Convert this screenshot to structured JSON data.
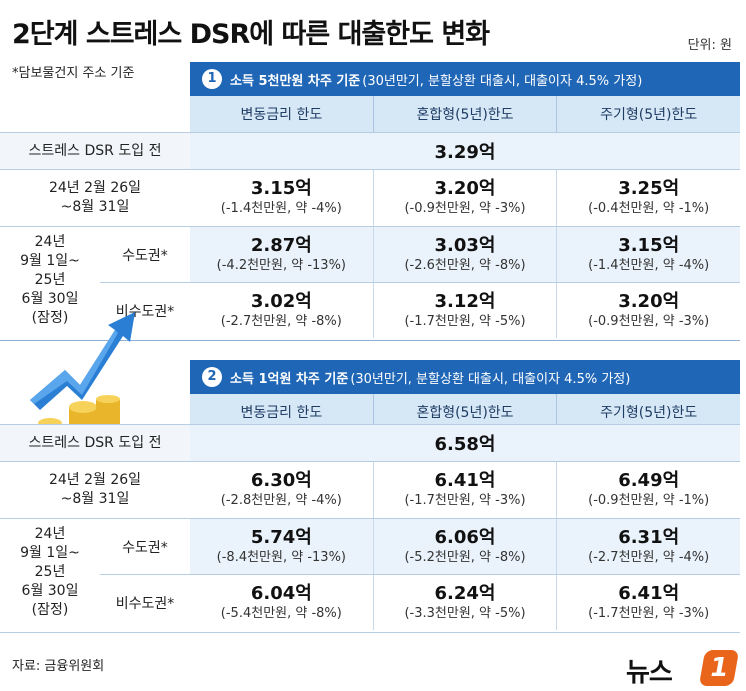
{
  "title": "2단계 스트레스 DSR에 따른 대출한도 변화",
  "unit": "단위: 원",
  "basis_note": "*담보물건지 주소 기준",
  "source": "자료: 금융위원회",
  "logo": {
    "text": "뉴스",
    "badge": "1"
  },
  "columns": [
    "변동금리 한도",
    "혼합형(5년)한도",
    "주기형(5년)한도"
  ],
  "row_labels": {
    "pre": "스트레스 DSR 도입 전",
    "phase1": [
      "24년 2월 26일",
      "~8월 31일"
    ],
    "phase2": [
      "24년",
      "9월 1일~",
      "25년",
      "6월 30일",
      "(잠정)"
    ],
    "capital": "수도권*",
    "non_capital": "비수도권*"
  },
  "sections": [
    {
      "num": "1",
      "title_main": "소득 5천만원 차주 기준",
      "title_sub": "(30년만기, 분할상환 대출시, 대출이자 4.5% 가정)",
      "pre_value": "3.29억",
      "phase1": [
        {
          "v": "3.15억",
          "c": "(-1.4천만원, 약 -4%)"
        },
        {
          "v": "3.20억",
          "c": "(-0.9천만원, 약 -3%)"
        },
        {
          "v": "3.25억",
          "c": "(-0.4천만원, 약 -1%)"
        }
      ],
      "capital": [
        {
          "v": "2.87억",
          "c": "(-4.2천만원, 약 -13%)"
        },
        {
          "v": "3.03억",
          "c": "(-2.6천만원, 약 -8%)"
        },
        {
          "v": "3.15억",
          "c": "(-1.4천만원, 약 -4%)"
        }
      ],
      "non_capital": [
        {
          "v": "3.02억",
          "c": "(-2.7천만원, 약 -8%)"
        },
        {
          "v": "3.12억",
          "c": "(-1.7천만원, 약 -5%)"
        },
        {
          "v": "3.20억",
          "c": "(-0.9천만원, 약 -3%)"
        }
      ]
    },
    {
      "num": "2",
      "title_main": "소득 1억원 차주 기준",
      "title_sub": "(30년만기, 분할상환 대출시, 대출이자 4.5% 가정)",
      "pre_value": "6.58억",
      "phase1": [
        {
          "v": "6.30억",
          "c": "(-2.8천만원, 약 -4%)"
        },
        {
          "v": "6.41억",
          "c": "(-1.7천만원, 약 -3%)"
        },
        {
          "v": "6.49억",
          "c": "(-0.9천만원, 약 -1%)"
        }
      ],
      "capital": [
        {
          "v": "5.74억",
          "c": "(-8.4천만원, 약 -13%)"
        },
        {
          "v": "6.06억",
          "c": "(-5.2천만원, 약 -8%)"
        },
        {
          "v": "6.31억",
          "c": "(-2.7천만원, 약 -4%)"
        }
      ],
      "non_capital": [
        {
          "v": "6.04억",
          "c": "(-5.4천만원, 약 -8%)"
        },
        {
          "v": "6.24억",
          "c": "(-3.3천만원, 약 -5%)"
        },
        {
          "v": "6.41억",
          "c": "(-1.7천만원, 약 -3%)"
        }
      ]
    }
  ],
  "colors": {
    "header": "#1f66b6",
    "subheader": "#d6e8f6",
    "band": "#eaf3fb",
    "logo": "#e8651b"
  }
}
